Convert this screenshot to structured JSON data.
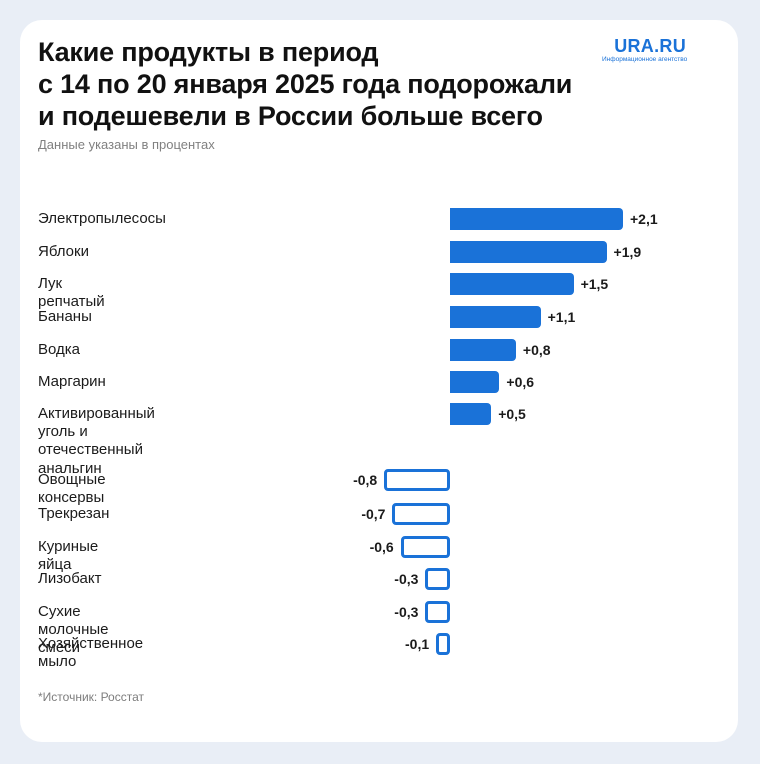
{
  "header": {
    "title_lines": [
      "Какие продукты в период",
      "с 14 по 20 января 2025 года подорожали",
      "и подешевели в России больше всего"
    ],
    "subtitle": "Данные указаны в процентах"
  },
  "logo": {
    "name": "URA.RU",
    "tagline": "Информационное агентство"
  },
  "footer": {
    "source": "*Источник: Росстат"
  },
  "colors": {
    "accent": "#1a72d8"
  },
  "chart_data": {
    "type": "bar",
    "orientation": "horizontal",
    "title": "Какие продукты в период с 14 по 20 января 2025 года подорожали и подешевели в России больше всего",
    "unit": "%",
    "categories": [
      "Электропылесосы",
      "Яблоки",
      "Лук репчатый",
      "Бананы",
      "Водка",
      "Маргарин",
      "Активированный уголь и отечественный анальгин",
      "Овощные консервы",
      "Трекрезан",
      "Куриные яйца",
      "Лизобакт",
      "Сухие молочные смеси",
      "Хозяйственное мыло"
    ],
    "label_lines": [
      [
        "Электропылесосы"
      ],
      [
        "Яблоки"
      ],
      [
        "Лук репчатый"
      ],
      [
        "Бананы"
      ],
      [
        "Водка"
      ],
      [
        "Маргарин"
      ],
      [
        "Активированный уголь и отечественный",
        "анальгин"
      ],
      [
        "Овощные консервы"
      ],
      [
        "Трекрезан"
      ],
      [
        "Куриные яйца"
      ],
      [
        "Лизобакт"
      ],
      [
        "Сухие молочные смеси"
      ],
      [
        "Хозяйственное мыло"
      ]
    ],
    "values": [
      2.1,
      1.9,
      1.5,
      1.1,
      0.8,
      0.6,
      0.5,
      -0.8,
      -0.7,
      -0.6,
      -0.3,
      -0.3,
      -0.1
    ],
    "value_labels": [
      "+2,1",
      "+1,9",
      "+1,5",
      "+1,1",
      "+0,8",
      "+0,6",
      "+0,5",
      "-0,8",
      "-0,7",
      "-0,6",
      "-0,3",
      "-0,3",
      "-0,1"
    ],
    "xlim": [
      -0.8,
      2.1
    ]
  }
}
